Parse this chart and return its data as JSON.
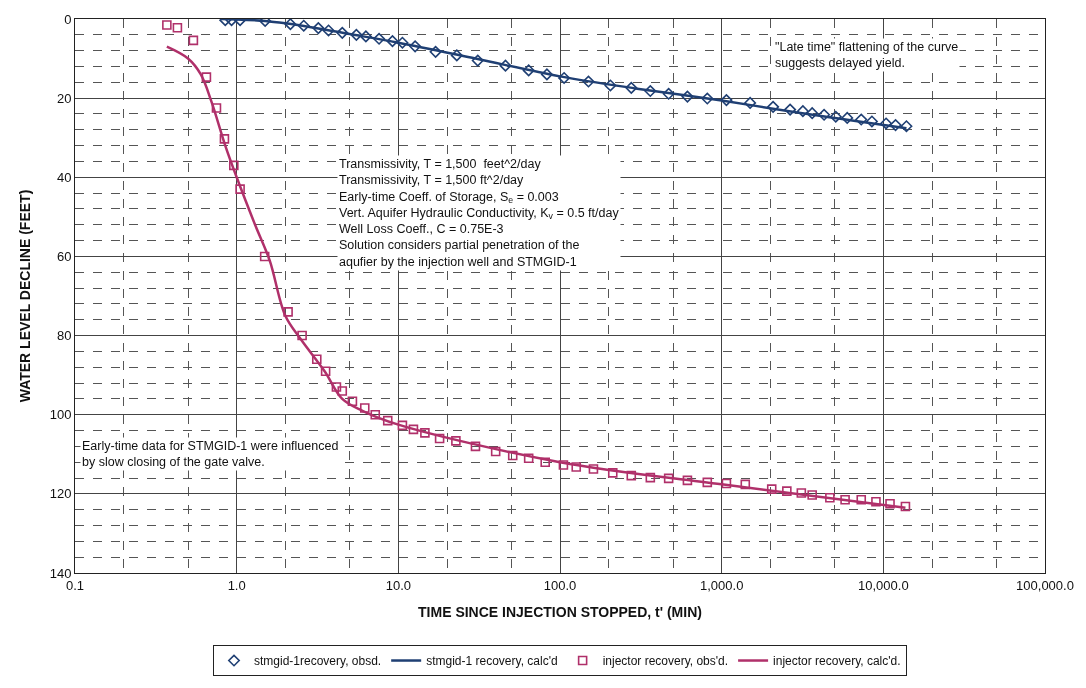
{
  "chart_data": {
    "type": "scatter",
    "xlabel": "TIME SINCE INJECTION STOPPED, t' (MIN)",
    "ylabel": "WATER LEVEL DECLINE (FEET)",
    "log": "x",
    "xlim": [
      0.1,
      100000
    ],
    "ylim": [
      140,
      0
    ],
    "xticks": [
      {
        "value": 0.1,
        "label": "0.1"
      },
      {
        "value": 1,
        "label": "1.0"
      },
      {
        "value": 10,
        "label": "10.0"
      },
      {
        "value": 100,
        "label": "100.0"
      },
      {
        "value": 1000,
        "label": "1,000.0"
      },
      {
        "value": 10000,
        "label": "10,000.0"
      },
      {
        "value": 100000,
        "label": "100,000.0"
      }
    ],
    "yticks": [
      0,
      20,
      40,
      60,
      80,
      100,
      120,
      140
    ],
    "grid": true,
    "legend": "bottom",
    "series": [
      {
        "name": "stmgid-1recovery, obsd.",
        "marker": "diamond",
        "color": "#1f3f73",
        "x": [
          0.85,
          0.93,
          1.05,
          1.5,
          2.15,
          2.6,
          3.2,
          3.7,
          4.5,
          5.5,
          6.3,
          7.6,
          9.2,
          10.6,
          12.7,
          17,
          23,
          31,
          46,
          64,
          83,
          106,
          150,
          205,
          276,
          362,
          470,
          614,
          815,
          1070,
          1500,
          2080,
          2650,
          3180,
          3630,
          4300,
          5080,
          5980,
          7300,
          8500,
          10400,
          11900,
          13900
        ],
        "values": [
          0.3,
          0.3,
          0.3,
          0.5,
          1.3,
          1.7,
          2.3,
          2.9,
          3.5,
          4,
          4.4,
          5,
          5.6,
          6,
          6.9,
          8.3,
          9.2,
          10.5,
          11.8,
          13,
          14,
          14.9,
          15.8,
          16.8,
          17.4,
          18.2,
          18.9,
          19.6,
          20.1,
          20.5,
          21.2,
          22.2,
          22.9,
          23.3,
          23.8,
          24.2,
          24.7,
          25,
          25.4,
          25.9,
          26.4,
          26.8,
          27.1
        ]
      },
      {
        "name": "stmgid-1 recovery, calc'd",
        "type": "line",
        "marker": "none",
        "color": "#1f3f73",
        "x": [
          0.8,
          1,
          1.5,
          2,
          3,
          5,
          10,
          30,
          100,
          300,
          1000,
          3000,
          13900
        ],
        "values": [
          0,
          0.1,
          0.5,
          1.1,
          2.2,
          3.8,
          6,
          10,
          14.5,
          17.6,
          20.6,
          23.7,
          27.6
        ]
      },
      {
        "name": "injector recovery, obs'd.",
        "marker": "square",
        "color": "#b0306a",
        "x": [
          0.37,
          0.43,
          0.54,
          0.65,
          0.75,
          0.84,
          0.96,
          1.05,
          1.49,
          2.08,
          2.54,
          3.13,
          3.55,
          4.14,
          4.5,
          5.2,
          6.2,
          7.2,
          8.6,
          10.6,
          12.4,
          14.6,
          18,
          22.7,
          30,
          40,
          51,
          64,
          81,
          105,
          126,
          161,
          212,
          276,
          362,
          470,
          614,
          815,
          1070,
          1400,
          2040,
          2530,
          3110,
          3630,
          4670,
          5800,
          7300,
          9000,
          11000,
          13700
        ],
        "values": [
          1.5,
          2.2,
          5.4,
          14.7,
          22.5,
          30.3,
          37,
          43,
          60,
          74,
          80,
          86,
          89,
          93,
          94,
          96.6,
          98.3,
          100,
          101.5,
          102.7,
          103.7,
          104.6,
          106,
          106.6,
          108,
          109.3,
          110.3,
          111,
          112,
          112.7,
          113.2,
          113.7,
          114.7,
          115.4,
          115.9,
          116.1,
          116.6,
          117.1,
          117.4,
          117.6,
          118.8,
          119.3,
          119.8,
          120.3,
          121,
          121.5,
          121.5,
          122,
          122.5,
          123.2
        ]
      },
      {
        "name": "injector recovery, calc'd.",
        "type": "line",
        "marker": "none",
        "color": "#b0306a",
        "x": [
          0.37,
          0.5,
          0.6,
          0.7,
          0.85,
          1,
          1.3,
          1.6,
          2,
          2.5,
          3.5,
          4.5,
          6,
          10,
          100,
          1000,
          13700
        ],
        "values": [
          7,
          10,
          14,
          21,
          32,
          40,
          52,
          61,
          75,
          81,
          89,
          96,
          99,
          102.5,
          112,
          117.6,
          123.5
        ]
      }
    ],
    "annotations": [
      "\"Late time\" flattening of the curve\nsuggests delayed yield.",
      "Transmissivity, T = 1,500  feet^2/day\nTransmissivity, T = 1,500 ft^2/day\nEarly-time Coeff. of Storage, S$_{e}$ = 0.003\nVert. Aquifer Hydraulic Conductivity, K$_{v}$ = 0.5 ft/day\nWell Loss Coeff., C = 0.75E-3\nSolution considers partial penetration of the\naqufier by the injection well and STMGID-1",
      "Early-time data for STMGID-1 were influenced\nby slow closing of the gate valve."
    ]
  }
}
